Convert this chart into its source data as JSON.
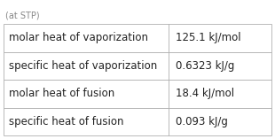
{
  "rows": [
    [
      "molar heat of vaporization",
      "125.1 kJ/mol"
    ],
    [
      "specific heat of vaporization",
      "0.6323 kJ/g"
    ],
    [
      "molar heat of fusion",
      "18.4 kJ/mol"
    ],
    [
      "specific heat of fusion",
      "0.093 kJ/g"
    ]
  ],
  "footer": "(at STP)",
  "bg_color": "#ffffff",
  "border_color": "#b0b0b0",
  "text_color": "#222222",
  "footer_color": "#888888",
  "font_size": 8.5,
  "footer_font_size": 7.0,
  "col_split": 0.615
}
